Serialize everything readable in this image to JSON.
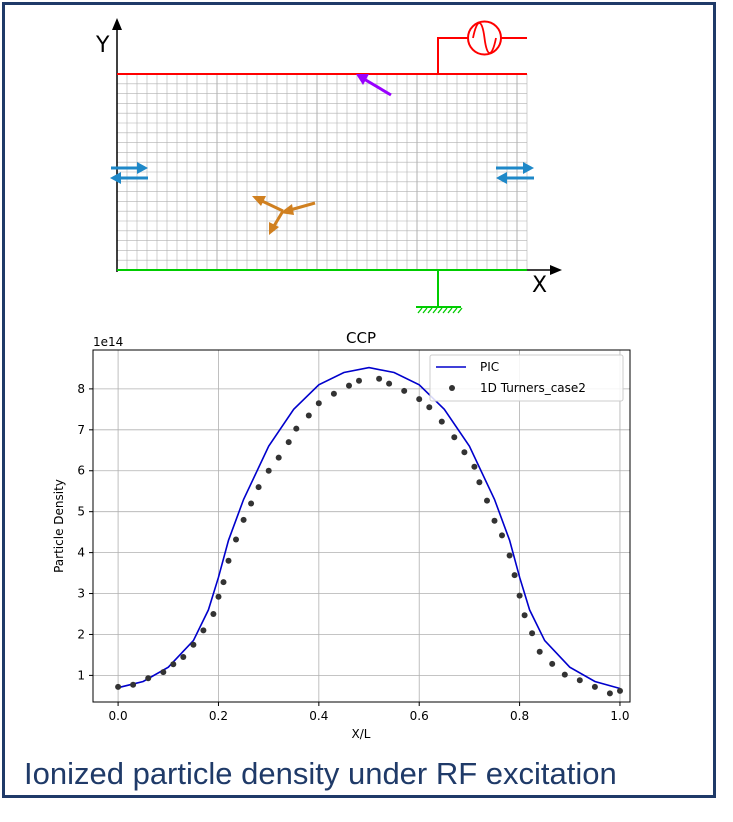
{
  "figure": {
    "border_color": "#1f3a68",
    "caption": "Ionized particle density under RF excitation"
  },
  "diagram": {
    "y_axis_label": "Y",
    "x_axis_label": "X",
    "colors": {
      "top_electrode": "#ff0000",
      "bottom_electrode": "#00cc00",
      "grid": "#b0b0b0",
      "boundary_arrows": "#1e88c8",
      "collision_arrows": "#d08020",
      "ion_arrow": "#9900ff"
    },
    "icons": [
      "rf-source-icon",
      "ground-icon",
      "boundary-arrows-icon",
      "collision-arrows-icon",
      "ion-arrow-icon"
    ]
  },
  "chart_data": {
    "type": "line",
    "title": "CCP",
    "xlabel": "X/L",
    "ylabel": "Particle Density",
    "y_scale_label": "1e14",
    "xlim": [
      -0.05,
      1.02
    ],
    "ylim": [
      0.35,
      8.95
    ],
    "x_ticks": [
      0.0,
      0.2,
      0.4,
      0.6,
      0.8,
      1.0
    ],
    "x_tick_labels": [
      "0.0",
      "0.2",
      "0.4",
      "0.6",
      "0.8",
      "1.0"
    ],
    "y_ticks": [
      1,
      2,
      3,
      4,
      5,
      6,
      7,
      8
    ],
    "y_tick_labels": [
      "1",
      "2",
      "3",
      "4",
      "5",
      "6",
      "7",
      "8"
    ],
    "grid": true,
    "legend_position": "top-right",
    "series": [
      {
        "name": "PIC",
        "style": "line",
        "color": "#0000cc",
        "x": [
          0.0,
          0.05,
          0.1,
          0.15,
          0.18,
          0.2,
          0.22,
          0.25,
          0.3,
          0.35,
          0.4,
          0.45,
          0.5,
          0.55,
          0.6,
          0.65,
          0.7,
          0.75,
          0.78,
          0.8,
          0.82,
          0.85,
          0.9,
          0.95,
          1.0
        ],
        "y": [
          0.7,
          0.85,
          1.2,
          1.85,
          2.6,
          3.4,
          4.3,
          5.3,
          6.6,
          7.5,
          8.1,
          8.4,
          8.52,
          8.4,
          8.1,
          7.5,
          6.6,
          5.3,
          4.3,
          3.4,
          2.6,
          1.85,
          1.2,
          0.85,
          0.68
        ]
      },
      {
        "name": "1D Turners_case2",
        "style": "scatter",
        "color": "#333333",
        "x": [
          0.0,
          0.03,
          0.06,
          0.09,
          0.11,
          0.13,
          0.15,
          0.17,
          0.19,
          0.2,
          0.21,
          0.22,
          0.235,
          0.25,
          0.265,
          0.28,
          0.3,
          0.32,
          0.34,
          0.355,
          0.38,
          0.4,
          0.43,
          0.46,
          0.48,
          0.52,
          0.54,
          0.57,
          0.6,
          0.62,
          0.645,
          0.67,
          0.69,
          0.71,
          0.72,
          0.735,
          0.75,
          0.765,
          0.78,
          0.79,
          0.8,
          0.81,
          0.825,
          0.84,
          0.865,
          0.89,
          0.92,
          0.95,
          0.98,
          1.0
        ],
        "y": [
          0.72,
          0.77,
          0.93,
          1.08,
          1.27,
          1.45,
          1.75,
          2.1,
          2.5,
          2.92,
          3.28,
          3.8,
          4.32,
          4.8,
          5.2,
          5.6,
          6.0,
          6.32,
          6.7,
          7.03,
          7.35,
          7.65,
          7.88,
          8.08,
          8.2,
          8.25,
          8.13,
          7.95,
          7.75,
          7.55,
          7.2,
          6.82,
          6.45,
          6.1,
          5.72,
          5.27,
          4.78,
          4.42,
          3.93,
          3.45,
          2.95,
          2.47,
          2.03,
          1.58,
          1.28,
          1.02,
          0.88,
          0.72,
          0.56,
          0.62
        ]
      }
    ]
  }
}
